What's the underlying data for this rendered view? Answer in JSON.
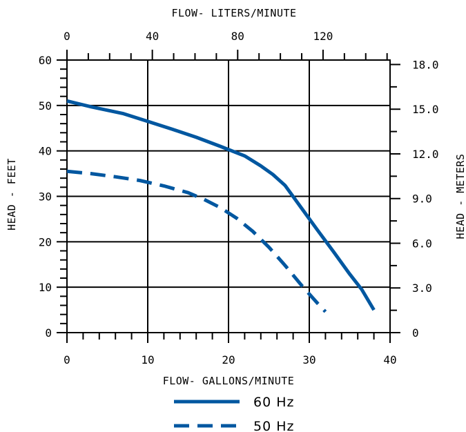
{
  "chart_data": {
    "type": "line",
    "title": "",
    "xlabel": "FLOW- GALLONS/MINUTE",
    "x2label": "FLOW- LITERS/MINUTE",
    "ylabel": "HEAD - FEET",
    "y2label": "HEAD - METERS",
    "xlim": [
      0,
      40
    ],
    "ylim": [
      0,
      60
    ],
    "x2lim": [
      0,
      151.4
    ],
    "y2lim": [
      0,
      18.3
    ],
    "x_ticks": [
      "0",
      "10",
      "20",
      "30",
      "40"
    ],
    "y_ticks": [
      "0",
      "10",
      "20",
      "30",
      "40",
      "50",
      "60"
    ],
    "x2_ticks": [
      "0",
      "40",
      "80",
      "120"
    ],
    "y2_ticks": [
      "0",
      "3.0",
      "6.0",
      "9.0",
      "12.0",
      "15.0",
      "18.0"
    ],
    "grid": true,
    "legend": "bottom",
    "colors": {
      "line": "#0057a0",
      "axis": "#000000"
    },
    "series": [
      {
        "name": "60 Hz",
        "style": "solid",
        "x": [
          0,
          3,
          7,
          10,
          13,
          16,
          19,
          22,
          24,
          25.5,
          27,
          29,
          31,
          33,
          35,
          36.5,
          38
        ],
        "y": [
          51,
          49.7,
          48.2,
          46.5,
          44.8,
          43,
          41,
          38.9,
          36.7,
          34.8,
          32.4,
          27.5,
          22.6,
          17.8,
          12.9,
          9.5,
          5
        ]
      },
      {
        "name": "50 Hz",
        "style": "dashed",
        "x": [
          0,
          3,
          6,
          9,
          12,
          15,
          17,
          19,
          21,
          23,
          25,
          27,
          29,
          31,
          32
        ],
        "y": [
          35.5,
          35,
          34.3,
          33.5,
          32.3,
          30.8,
          29.3,
          27.5,
          25.2,
          22.3,
          18.8,
          14.8,
          10.5,
          6.5,
          4.6
        ]
      }
    ]
  }
}
